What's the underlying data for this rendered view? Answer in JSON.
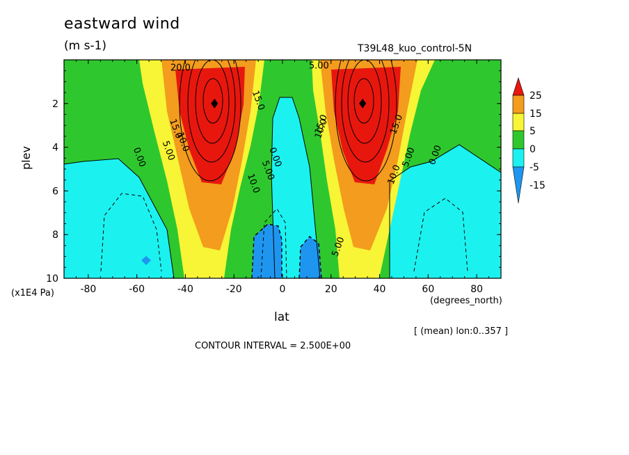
{
  "title": "eastward wind",
  "units": "(m s-1)",
  "run_label": "T39L48_kuo_control-5N",
  "y_axis_label": "plev",
  "y_axis_units": "(x1E4 Pa)",
  "x_axis_label": "lat",
  "x_axis_units": "(degrees_north)",
  "mean_note": "[ (mean) lon:0..357 ]",
  "contour_interval": "CONTOUR INTERVAL = 2.500E+00",
  "colors": {
    "red": "#e8170e",
    "orange": "#f39c1e",
    "yellow": "#f7f535",
    "green": "#2ec82e",
    "cyan": "#1bf2f0",
    "blue": "#1e96f0"
  },
  "chart_data": {
    "type": "heatmap",
    "subtype": "filled-contour",
    "x_label": "lat",
    "y_label": "plev",
    "xlim": [
      -90,
      90
    ],
    "ylim": [
      0,
      10
    ],
    "y_inverted": true,
    "x_ticks": [
      -80,
      -60,
      -40,
      -20,
      0,
      20,
      40,
      60,
      80
    ],
    "y_ticks": [
      2,
      4,
      6,
      8,
      10
    ],
    "colorbar_ticks": [
      25,
      15,
      5,
      0,
      -5,
      -15
    ],
    "contour_interval": 2.5,
    "jets": [
      {
        "name": "southern jet",
        "lat": -28,
        "plev": 2,
        "value": 25
      },
      {
        "name": "northern jet",
        "lat": 33,
        "plev": 2,
        "value": 25
      }
    ],
    "contour_labels": [
      {
        "text": "20.0",
        "lat": -42,
        "plev": 0.5
      },
      {
        "text": "15.0",
        "lat": -45,
        "plev": 3.2
      },
      {
        "text": "10.0",
        "lat": -42,
        "plev": 3.8
      },
      {
        "text": "5.00",
        "lat": -48,
        "plev": 4.2
      },
      {
        "text": "0.00",
        "lat": -60,
        "plev": 4.5
      },
      {
        "text": "15.0",
        "lat": -11,
        "plev": 1.9
      },
      {
        "text": "10.0",
        "lat": -13,
        "plev": 5.7
      },
      {
        "text": "5.00",
        "lat": -7,
        "plev": 5.1
      },
      {
        "text": "0.00",
        "lat": -4,
        "plev": 4.5
      },
      {
        "text": "5.00",
        "lat": 15,
        "plev": 0.4
      },
      {
        "text": "15.0",
        "lat": 17,
        "plev": 3.0
      },
      {
        "text": "10.0",
        "lat": 17,
        "plev": 3.2
      },
      {
        "text": "5.00",
        "lat": 24,
        "plev": 8.6
      },
      {
        "text": "10.0",
        "lat": 47,
        "plev": 5.3
      },
      {
        "text": "15.0",
        "lat": 48,
        "plev": 3.0
      },
      {
        "text": "5.00",
        "lat": 53,
        "plev": 4.5
      },
      {
        "text": "0.00",
        "lat": 64,
        "plev": 4.4
      }
    ]
  }
}
